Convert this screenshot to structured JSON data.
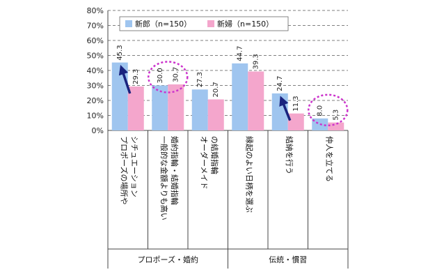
{
  "chart_data": {
    "type": "bar",
    "title": "",
    "xlabel": "",
    "ylabel": "",
    "ylim": [
      0,
      80
    ],
    "yticks": [
      "0%",
      "10%",
      "20%",
      "30%",
      "40%",
      "50%",
      "60%",
      "70%",
      "80%"
    ],
    "grid": true,
    "legend_position": "top",
    "categories": [
      [
        "プロポーズの場所や",
        "シチュエーション"
      ],
      [
        "一般的な金額よりも高い",
        "婚約指輪・結婚指輪"
      ],
      [
        "オーダーメイド",
        "の結婚指輪"
      ],
      [
        "縁起のよい日柄を選ぶ"
      ],
      [
        "結納を行う"
      ],
      [
        "仲人を立てる"
      ]
    ],
    "series": [
      {
        "name": "新郎（n=150）",
        "color": "#9fc5ef",
        "values": [
          45.3,
          30.0,
          27.3,
          44.7,
          24.7,
          8.0
        ],
        "labels": [
          "45.3",
          "30.0",
          "27.3",
          "44.7",
          "24.7",
          "8.0"
        ]
      },
      {
        "name": "新婦（n=150）",
        "color": "#f4a6cc",
        "values": [
          29.3,
          30.7,
          20.7,
          39.3,
          11.3,
          5.3
        ],
        "labels": [
          "29.3",
          "30.7",
          "20.7",
          "39.3",
          "11.3",
          "5.3"
        ]
      }
    ],
    "groups": [
      {
        "label": "プロポーズ・婚約",
        "from": 0,
        "to": 2
      },
      {
        "label": "伝統・慣習",
        "from": 3,
        "to": 5
      }
    ],
    "annotations": {
      "arrow_color": "#1a237e",
      "circle_color": "#cc33cc",
      "arrows": [
        0,
        4
      ],
      "circles": [
        1,
        5
      ]
    }
  }
}
